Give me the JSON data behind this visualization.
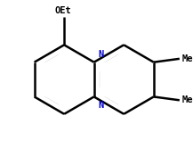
{
  "bg_color": "#ffffff",
  "bond_color": "#000000",
  "N_color": "#0000cc",
  "label_color": "#000000",
  "OEt_label": "OEt",
  "Me_label": "Me",
  "N_label": "N",
  "line_width": 1.8,
  "fig_width": 2.17,
  "fig_height": 1.67,
  "dpi": 100
}
